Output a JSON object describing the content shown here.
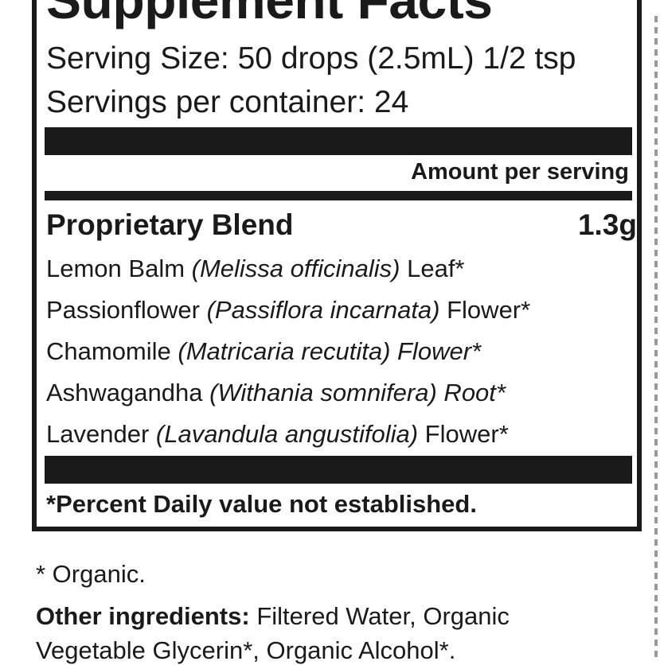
{
  "label": {
    "title": "Supplement Facts",
    "serving_size": "Serving Size: 50 drops (2.5mL) 1/2 tsp",
    "servings_per_container": "Servings per container: 24",
    "amount_header": "Amount per serving",
    "blend": {
      "name": "Proprietary Blend",
      "amount": "1.3g"
    },
    "ingredients": [
      {
        "name": "Lemon Balm ",
        "latin": "(Melissa officinalis)",
        "part": " Leaf*",
        "part_italic": false
      },
      {
        "name": "Passionflower ",
        "latin": "(Passiflora incarnata)",
        "part": " Flower*",
        "part_italic": false
      },
      {
        "name": "Chamomile ",
        "latin": "(Matricaria recutita) Flower*",
        "part": "",
        "part_italic": true
      },
      {
        "name": "Ashwagandha ",
        "latin": "(Withania somnifera) Root*",
        "part": "",
        "part_italic": true
      },
      {
        "name": "Lavender ",
        "latin": "(Lavandula angustifolia)",
        "part": " Flower*",
        "part_italic": false
      }
    ],
    "footnote": "*Percent Daily value not established."
  },
  "below": {
    "organic_note": "* Organic.",
    "other_label": "Other ingredients:",
    "other_line1": " Filtered Water, Organic",
    "other_line2": "Vegetable Glycerin*, Organic Alcohol*."
  }
}
